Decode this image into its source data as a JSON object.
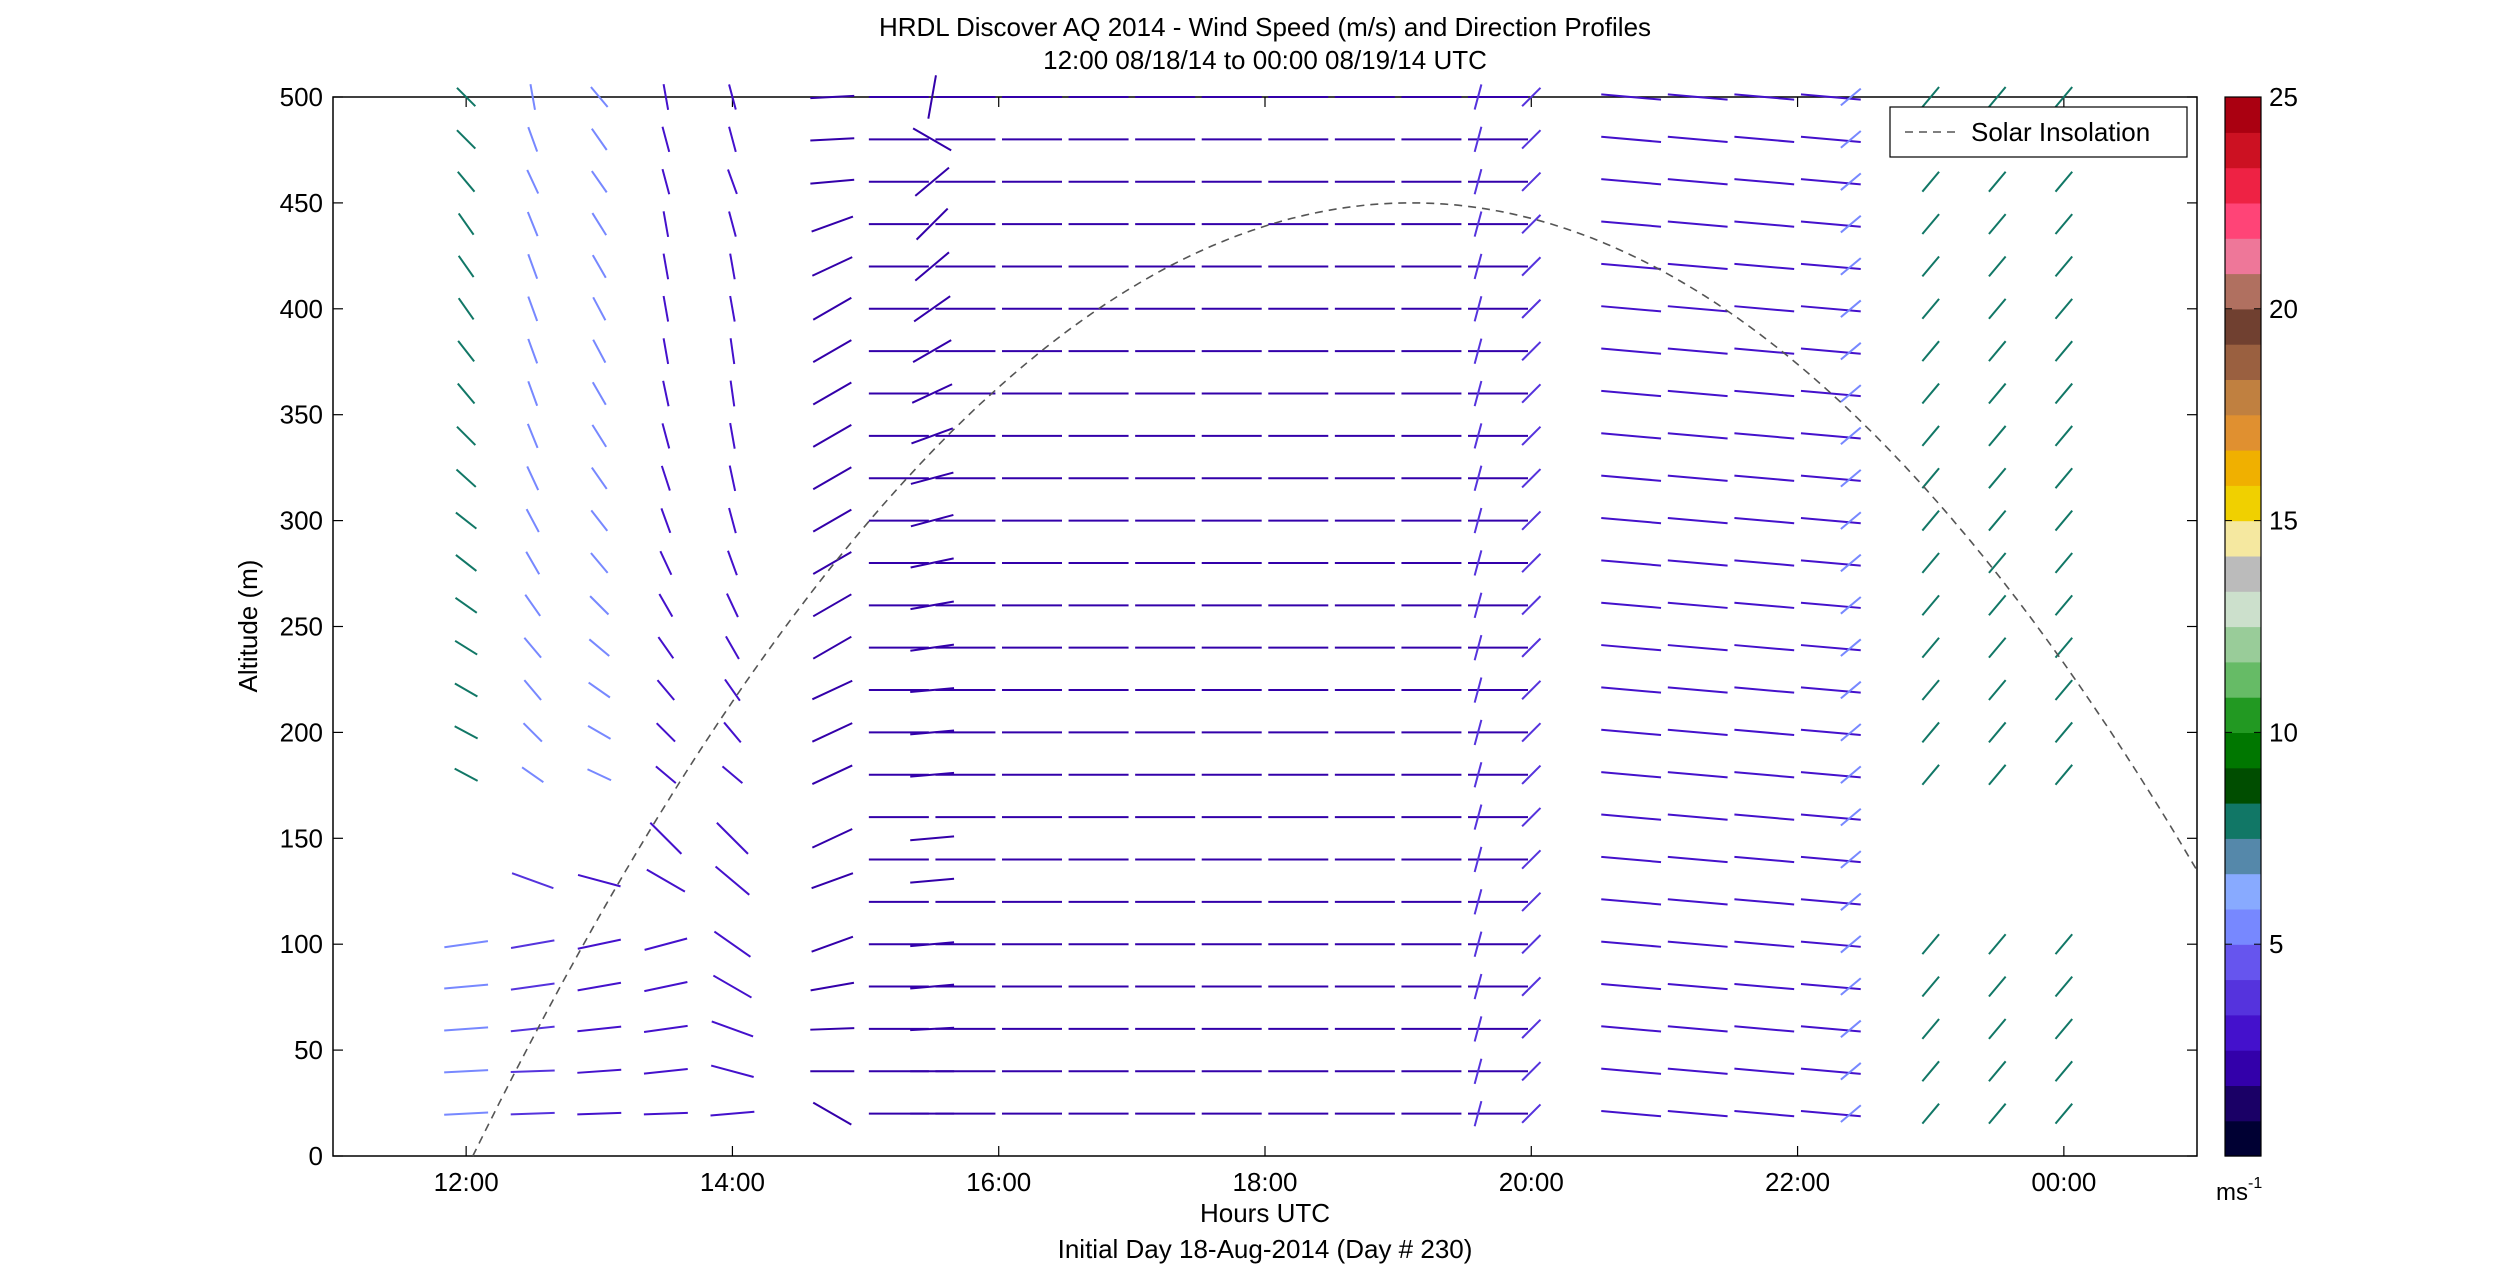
{
  "chart_data": {
    "type": "wind-barb-profile",
    "title_line1": "HRDL Discover AQ 2014 - Wind Speed (m/s) and Direction Profiles",
    "title_line2": "12:00 08/18/14 to 00:00 08/19/14  UTC",
    "xlabel": "Hours UTC",
    "xlabel_line2": "Initial Day 18-Aug-2014 (Day # 230)",
    "ylabel": "Altitude (m)",
    "xlim": [
      11,
      25
    ],
    "ylim": [
      0,
      500
    ],
    "xticks": [
      {
        "value": 12,
        "label": "12:00"
      },
      {
        "value": 14,
        "label": "14:00"
      },
      {
        "value": 16,
        "label": "16:00"
      },
      {
        "value": 18,
        "label": "18:00"
      },
      {
        "value": 20,
        "label": "20:00"
      },
      {
        "value": 22,
        "label": "22:00"
      },
      {
        "value": 24,
        "label": "00:00"
      }
    ],
    "yticks": [
      0,
      50,
      100,
      150,
      200,
      250,
      300,
      350,
      400,
      450,
      500
    ],
    "legend": {
      "label": "Solar Insolation",
      "position": "top-right",
      "line_color": "#555555"
    },
    "solar_curve": {
      "start_hour": 12.05,
      "end_hour": 25.0,
      "peak_hour": 19.1,
      "peak_altitude": 450
    },
    "colorbar": {
      "min": 0,
      "max": 25,
      "ticks": [
        5,
        10,
        15,
        20,
        25
      ],
      "unit_label": "ms",
      "unit_exponent": "-1",
      "colors": [
        "#000033",
        "#1a0066",
        "#3300aa",
        "#4411cc",
        "#5533dd",
        "#6655ee",
        "#7788ff",
        "#88aaff",
        "#5588aa",
        "#117766",
        "#004d00",
        "#007700",
        "#229922",
        "#66bb66",
        "#99cc99",
        "#cce0cc",
        "#bbbbbb",
        "#f5e8a0",
        "#f0d000",
        "#f0b000",
        "#e09030",
        "#c08040",
        "#9a6040",
        "#704030",
        "#b07060",
        "#ee7799",
        "#ff4477",
        "#ee2244",
        "#cc1122",
        "#aa0011"
      ]
    },
    "wind_vectors": {
      "note": "Line segments centered at (hour, altitude m); angle_deg measured counterclockwise from +x, speed in m/s for color",
      "columns": [
        {
          "hour": 12.0,
          "low": [
            [
              20,
              3,
              5
            ],
            [
              40,
              3,
              5
            ],
            [
              60,
              4,
              5
            ],
            [
              80,
              5,
              5
            ],
            [
              100,
              8,
              5
            ]
          ],
          "high": [
            [
              180,
              -28,
              8
            ],
            [
              200,
              -28,
              8
            ],
            [
              220,
              -30,
              8
            ],
            [
              240,
              -32,
              8
            ],
            [
              260,
              -35,
              8
            ],
            [
              280,
              -38,
              8
            ],
            [
              300,
              -38,
              8
            ],
            [
              320,
              -42,
              8
            ],
            [
              340,
              -45,
              8
            ],
            [
              360,
              -50,
              8
            ],
            [
              380,
              -52,
              8
            ],
            [
              400,
              -55,
              8
            ],
            [
              420,
              -55,
              8
            ],
            [
              440,
              -55,
              8
            ],
            [
              460,
              -50,
              8
            ],
            [
              480,
              -45,
              8
            ],
            [
              500,
              -45,
              8
            ]
          ]
        },
        {
          "hour": 12.5,
          "low": [
            [
              20,
              2,
              4
            ],
            [
              40,
              2,
              4
            ],
            [
              60,
              6,
              4
            ],
            [
              80,
              8,
              4
            ],
            [
              100,
              10,
              4
            ],
            [
              130,
              -20,
              4
            ]
          ],
          "high": [
            [
              180,
              -35,
              5
            ],
            [
              200,
              -45,
              5
            ],
            [
              220,
              -50,
              5
            ],
            [
              240,
              -50,
              5
            ],
            [
              260,
              -55,
              5
            ],
            [
              280,
              -60,
              5
            ],
            [
              300,
              -62,
              5
            ],
            [
              320,
              -65,
              5
            ],
            [
              340,
              -68,
              5
            ],
            [
              360,
              -70,
              5
            ],
            [
              380,
              -70,
              5
            ],
            [
              400,
              -70,
              5
            ],
            [
              420,
              -70,
              5
            ],
            [
              440,
              -68,
              5
            ],
            [
              460,
              -65,
              5
            ],
            [
              480,
              -70,
              5
            ],
            [
              500,
              -80,
              5
            ]
          ]
        },
        {
          "hour": 13.0,
          "low": [
            [
              20,
              2,
              3
            ],
            [
              40,
              4,
              3
            ],
            [
              60,
              6,
              3
            ],
            [
              80,
              10,
              3
            ],
            [
              100,
              12,
              3
            ],
            [
              130,
              -15,
              3
            ]
          ],
          "high": [
            [
              180,
              -25,
              5
            ],
            [
              200,
              -30,
              5
            ],
            [
              220,
              -35,
              5
            ],
            [
              240,
              -40,
              5
            ],
            [
              260,
              -45,
              5
            ],
            [
              280,
              -50,
              5
            ],
            [
              300,
              -52,
              5
            ],
            [
              320,
              -55,
              5
            ],
            [
              340,
              -58,
              5
            ],
            [
              360,
              -60,
              5
            ],
            [
              380,
              -62,
              5
            ],
            [
              400,
              -62,
              5
            ],
            [
              420,
              -60,
              5
            ],
            [
              440,
              -58,
              5
            ],
            [
              460,
              -55,
              5
            ],
            [
              480,
              -55,
              5
            ],
            [
              500,
              -50,
              5
            ]
          ]
        },
        {
          "hour": 13.5,
          "low": [
            [
              20,
              2,
              3
            ],
            [
              40,
              6,
              3
            ],
            [
              60,
              8,
              3
            ],
            [
              80,
              12,
              3
            ],
            [
              100,
              15,
              3
            ],
            [
              130,
              -30,
              3
            ],
            [
              150,
              -45,
              3
            ]
          ],
          "high": [
            [
              180,
              -40,
              3
            ],
            [
              200,
              -45,
              3
            ],
            [
              220,
              -50,
              3
            ],
            [
              240,
              -55,
              3
            ],
            [
              260,
              -60,
              3
            ],
            [
              280,
              -65,
              3
            ],
            [
              300,
              -70,
              3
            ],
            [
              320,
              -72,
              3
            ],
            [
              340,
              -75,
              3
            ],
            [
              360,
              -78,
              3
            ],
            [
              380,
              -80,
              3
            ],
            [
              400,
              -80,
              3
            ],
            [
              420,
              -80,
              3
            ],
            [
              440,
              -80,
              3
            ],
            [
              460,
              -75,
              3
            ],
            [
              480,
              -75,
              3
            ],
            [
              500,
              -80,
              3
            ]
          ]
        },
        {
          "hour": 14.0,
          "low": [
            [
              20,
              5,
              3
            ],
            [
              40,
              -15,
              3
            ],
            [
              60,
              -20,
              3
            ],
            [
              80,
              -30,
              3
            ],
            [
              100,
              -35,
              3
            ],
            [
              130,
              -40,
              3
            ],
            [
              150,
              -45,
              3
            ]
          ],
          "high": [
            [
              180,
              -40,
              3
            ],
            [
              200,
              -50,
              3
            ],
            [
              220,
              -55,
              3
            ],
            [
              240,
              -60,
              3
            ],
            [
              260,
              -65,
              3
            ],
            [
              280,
              -70,
              3
            ],
            [
              300,
              -75,
              3
            ],
            [
              320,
              -78,
              3
            ],
            [
              340,
              -80,
              3
            ],
            [
              360,
              -82,
              3
            ],
            [
              380,
              -82,
              3
            ],
            [
              400,
              -80,
              3
            ],
            [
              420,
              -80,
              3
            ],
            [
              440,
              -75,
              3
            ],
            [
              460,
              -70,
              3
            ],
            [
              480,
              -75,
              3
            ],
            [
              500,
              -75,
              3
            ]
          ]
        },
        {
          "hour": 14.75,
          "low": [
            [
              20,
              -30,
              2
            ],
            [
              40,
              0,
              2
            ],
            [
              60,
              2,
              2
            ],
            [
              80,
              10,
              2
            ],
            [
              100,
              20,
              2
            ],
            [
              130,
              20,
              2
            ],
            [
              150,
              25,
              2
            ],
            [
              180,
              25,
              2
            ],
            [
              200,
              25,
              2
            ],
            [
              220,
              25,
              2
            ],
            [
              240,
              30,
              2
            ],
            [
              260,
              30,
              2
            ],
            [
              280,
              30,
              2
            ],
            [
              300,
              30,
              2
            ],
            [
              320,
              30,
              2
            ],
            [
              340,
              30,
              2
            ],
            [
              360,
              30,
              2
            ],
            [
              380,
              30,
              2
            ],
            [
              400,
              30,
              2
            ],
            [
              420,
              25,
              2
            ],
            [
              440,
              20,
              2
            ],
            [
              460,
              5,
              2
            ],
            [
              480,
              3,
              2
            ],
            [
              500,
              3,
              2
            ]
          ],
          "high": []
        },
        {
          "hour": 15.5,
          "low": [
            [
              20,
              0,
              2
            ],
            [
              40,
              0,
              2
            ],
            [
              60,
              3,
              2
            ],
            [
              80,
              5,
              2
            ],
            [
              100,
              5,
              2
            ],
            [
              130,
              5,
              2
            ],
            [
              150,
              5,
              2
            ],
            [
              180,
              5,
              2
            ],
            [
              200,
              5,
              2
            ],
            [
              220,
              5,
              2
            ],
            [
              240,
              8,
              2
            ],
            [
              260,
              10,
              2
            ],
            [
              280,
              12,
              2
            ],
            [
              300,
              15,
              2
            ],
            [
              320,
              15,
              2
            ],
            [
              340,
              20,
              2
            ],
            [
              360,
              25,
              2
            ],
            [
              380,
              30,
              2
            ],
            [
              400,
              35,
              2
            ],
            [
              420,
              40,
              2
            ],
            [
              440,
              45,
              2
            ],
            [
              460,
              40,
              2
            ],
            [
              480,
              -30,
              2
            ],
            [
              500,
              80,
              2
            ]
          ],
          "high": []
        }
      ],
      "transects": [
        {
          "start_hour": 15.0,
          "end_hour": 19.6,
          "angle_deg": 0,
          "speed": 2
        },
        {
          "start_hour": 20.5,
          "end_hour": 22.0,
          "angle_deg": -5,
          "speed": 3
        }
      ],
      "late_columns": [
        {
          "hour": 19.6,
          "speed": 4,
          "angle_deg": 75
        },
        {
          "hour": 20.0,
          "speed": 4,
          "angle_deg": 45
        },
        {
          "hour": 22.4,
          "speed": 5,
          "angle_deg": 40
        },
        {
          "hour": 23.0,
          "speed": 8,
          "angle_deg": 50
        },
        {
          "hour": 23.5,
          "speed": 8,
          "angle_deg": 50
        },
        {
          "hour": 24.0,
          "speed": 8,
          "angle_deg": 50
        }
      ]
    }
  }
}
